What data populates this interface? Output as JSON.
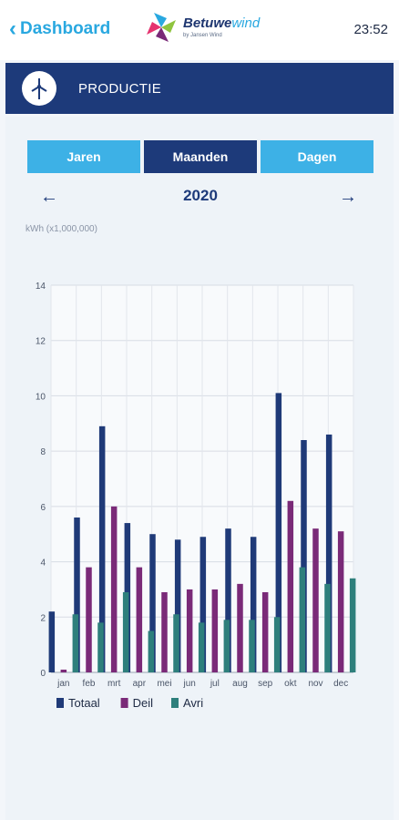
{
  "topbar": {
    "back_label": "Dashboard",
    "brand_bold": "Betuwe",
    "brand_light": "wind",
    "brand_tagline": "by Jansen Wind",
    "time": "23:52"
  },
  "banner": {
    "title": "PRODUCTIE",
    "icon": "wind-turbine-icon"
  },
  "tabs": [
    {
      "label": "Jaren",
      "active": false
    },
    {
      "label": "Maanden",
      "active": true
    },
    {
      "label": "Dagen",
      "active": false
    }
  ],
  "year_nav": {
    "year": "2020"
  },
  "colors": {
    "accent": "#29a8e0",
    "navy": "#1d3a7a",
    "totaal": "#1f3a78",
    "deil": "#7a2a78",
    "avri": "#2e7f7c"
  },
  "chart_data": {
    "type": "bar",
    "ylabel": "kWh (x1,000,000)",
    "ylim": [
      0,
      14
    ],
    "yticks": [
      0,
      2,
      4,
      6,
      8,
      10,
      12,
      14
    ],
    "categories": [
      "jan",
      "feb",
      "mrt",
      "apr",
      "mei",
      "jun",
      "jul",
      "aug",
      "sep",
      "okt",
      "nov",
      "dec"
    ],
    "series": [
      {
        "name": "Totaal",
        "color": "#1f3a78",
        "values": [
          2.2,
          5.6,
          8.9,
          5.4,
          5.0,
          4.8,
          4.9,
          5.2,
          4.9,
          10.1,
          8.4,
          8.6
        ]
      },
      {
        "name": "Deil",
        "color": "#7a2a78",
        "values": [
          0.1,
          3.8,
          6.0,
          3.8,
          2.9,
          3.0,
          3.0,
          3.2,
          2.9,
          6.2,
          5.2,
          5.1
        ]
      },
      {
        "name": "Avri",
        "color": "#2e7f7c",
        "values": [
          2.1,
          1.8,
          2.9,
          1.5,
          2.1,
          1.8,
          1.9,
          1.9,
          2.0,
          3.8,
          3.2,
          3.4
        ]
      }
    ],
    "grid": true,
    "legend": "bottom-left"
  }
}
